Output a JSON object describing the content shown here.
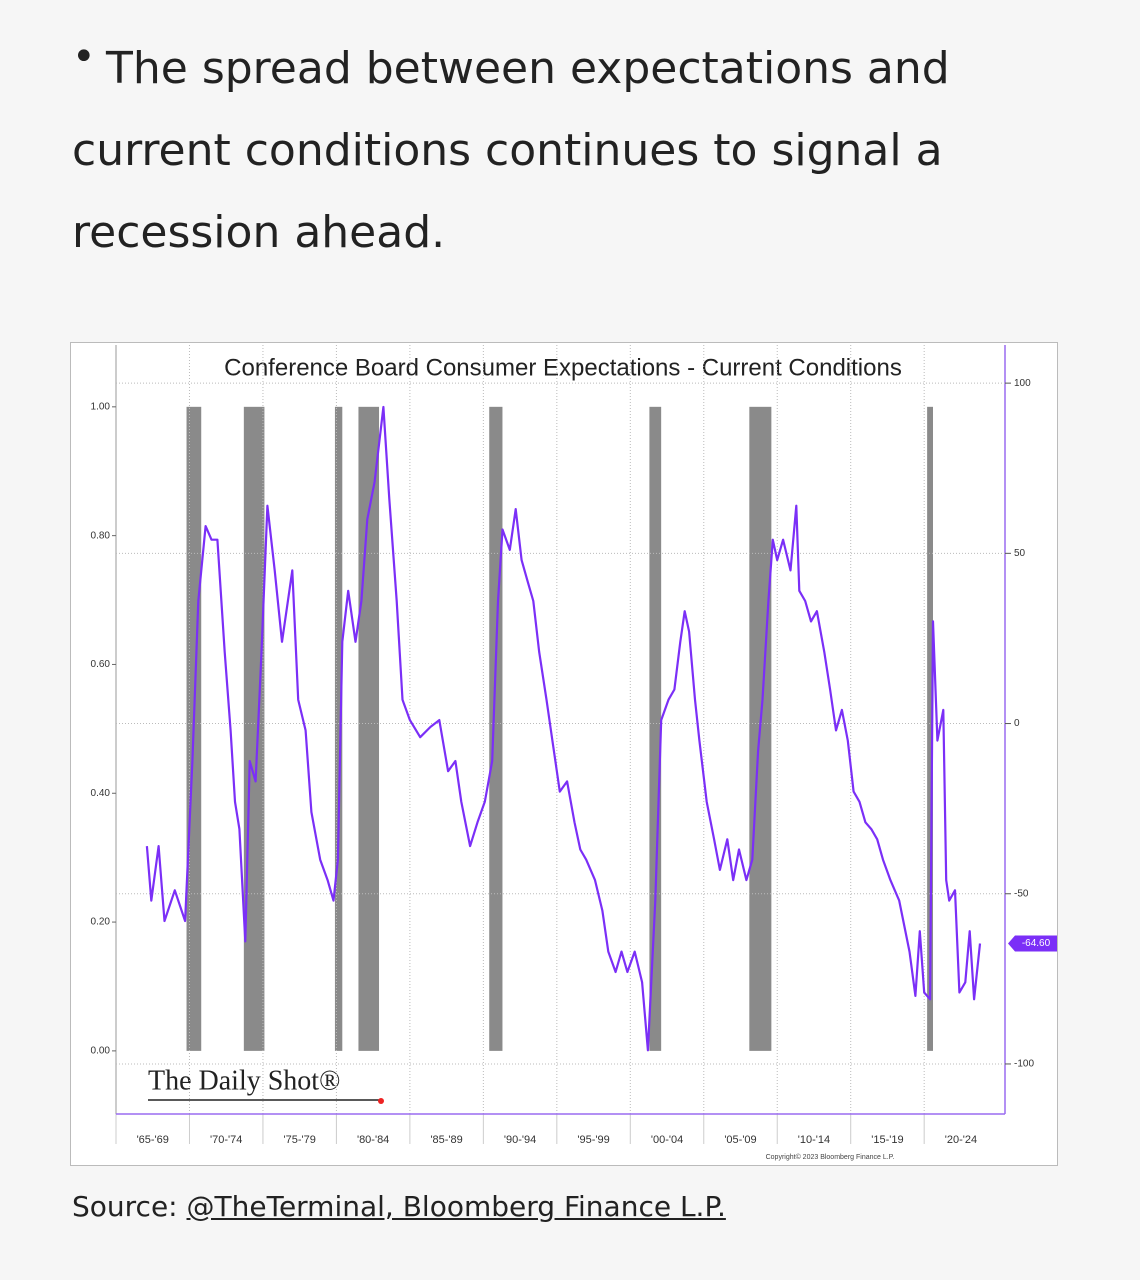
{
  "bullet": "The spread between expectations and current conditions continues to signal a recession ahead.",
  "chart_data": {
    "type": "line",
    "title": "Conference Board Consumer Expectations - Current Conditions",
    "color": "#7b2ff7",
    "axis": "y2",
    "x": [
      1967.1,
      1967.4,
      1967.9,
      1968.3,
      1969.0,
      1969.7,
      1970.2,
      1970.6,
      1971.1,
      1971.5,
      1971.9,
      1972.4,
      1972.8,
      1973.1,
      1973.4,
      1973.8,
      1974.1,
      1974.5,
      1974.9,
      1975.3,
      1975.8,
      1976.3,
      1976.7,
      1977.0,
      1977.4,
      1977.9,
      1978.3,
      1978.9,
      1979.4,
      1979.8,
      1980.1,
      1980.4,
      1980.8,
      1981.3,
      1981.7,
      1982.1,
      1982.6,
      1983.2,
      1983.6,
      1984.1,
      1984.5,
      1985.0,
      1985.7,
      1986.4,
      1987.0,
      1987.6,
      1988.1,
      1988.5,
      1989.1,
      1989.6,
      1990.1,
      1990.6,
      1991.0,
      1991.3,
      1991.8,
      1992.2,
      1992.6,
      1993.0,
      1993.4,
      1993.8,
      1994.3,
      1994.7,
      1995.2,
      1995.7,
      1996.2,
      1996.6,
      1997.0,
      1997.6,
      1998.1,
      1998.5,
      1999.0,
      1999.4,
      1999.8,
      2000.3,
      2000.8,
      2001.2,
      2001.7,
      2002.1,
      2002.6,
      2003.0,
      2003.4,
      2003.7,
      2004.0,
      2004.4,
      2004.7,
      2005.2,
      2005.7,
      2006.1,
      2006.6,
      2007.0,
      2007.4,
      2007.9,
      2008.3,
      2008.7,
      2009.0,
      2009.4,
      2009.7,
      2010.0,
      2010.4,
      2010.9,
      2011.3,
      2011.5,
      2011.9,
      2012.3,
      2012.7,
      2013.2,
      2013.6,
      2014.0,
      2014.4,
      2014.8,
      2015.2,
      2015.6,
      2016.0,
      2016.4,
      2016.8,
      2017.2,
      2017.7,
      2018.3,
      2019.0,
      2019.4,
      2019.7,
      2020.0,
      2020.4,
      2020.6,
      2020.9,
      2021.3,
      2021.5,
      2021.7,
      2022.1,
      2022.4,
      2022.8,
      2023.1,
      2023.4,
      2023.8
    ],
    "values": [
      -36,
      -52,
      -36,
      -58,
      -49,
      -58,
      -11,
      36,
      58,
      54,
      54,
      21,
      -2,
      -23,
      -31,
      -64,
      -11,
      -17,
      21,
      64,
      45,
      24,
      36,
      45,
      7,
      -2,
      -26,
      -40,
      -46,
      -52,
      -40,
      24,
      39,
      24,
      36,
      60,
      71,
      93,
      66,
      36,
      7,
      1,
      -4,
      -1,
      1,
      -14,
      -11,
      -23,
      -36,
      -29,
      -23,
      -11,
      36,
      57,
      51,
      63,
      48,
      42,
      36,
      21,
      7,
      -5,
      -20,
      -17,
      -29,
      -37,
      -40,
      -46,
      -55,
      -67,
      -73,
      -67,
      -73,
      -67,
      -76,
      -96,
      -52,
      1,
      7,
      10,
      24,
      33,
      27,
      7,
      -5,
      -23,
      -34,
      -43,
      -34,
      -46,
      -37,
      -46,
      -40,
      -8,
      7,
      36,
      54,
      48,
      54,
      45,
      64,
      39,
      36,
      30,
      33,
      21,
      10,
      -2,
      4,
      -5,
      -20,
      -23,
      -29,
      -31,
      -34,
      -40,
      -46,
      -52,
      -67,
      -80,
      -61,
      -79,
      -81,
      30,
      -5,
      4,
      -46,
      -52,
      -49,
      -79,
      -76,
      -61,
      -81,
      -64.6
    ],
    "end_label": "-64.60",
    "recessions": [
      [
        1969.8,
        1970.8
      ],
      [
        1973.7,
        1975.1
      ],
      [
        1979.9,
        1980.4
      ],
      [
        1981.5,
        1982.9
      ],
      [
        1990.4,
        1991.3
      ],
      [
        2001.3,
        2002.1
      ],
      [
        2008.1,
        2009.6
      ],
      [
        2020.2,
        2020.6
      ]
    ],
    "xlim": [
      1965,
      2025.5
    ],
    "xticks": [
      1965,
      1970,
      1975,
      1980,
      1985,
      1990,
      1995,
      2000,
      2005,
      2010,
      2015,
      2020
    ],
    "categories": [
      "'65-'69",
      "'70-'74",
      "'75-'79",
      "'80-'84",
      "'85-'89",
      "'90-'94",
      "'95-'99",
      "'00-'04",
      "'05-'09",
      "'10-'14",
      "'15-'19",
      "'20-'24"
    ],
    "ylim": [
      -0.098,
      1.096
    ],
    "yticks": [
      {
        "value": 0,
        "label": "0.00"
      },
      {
        "value": 0.2,
        "label": "0.20"
      },
      {
        "value": 0.4,
        "label": "0.40"
      },
      {
        "value": 0.6,
        "label": "0.60"
      },
      {
        "value": 0.8,
        "label": "0.80"
      },
      {
        "value": 1,
        "label": "1.00"
      }
    ],
    "y2lim": [
      -114.7,
      111.2
    ],
    "y2ticks": [
      100,
      50,
      0,
      -50,
      -100
    ],
    "grid": true,
    "logo": "The Daily Shot®",
    "copyright": "Copyright© 2023 Bloomberg Finance L.P."
  },
  "source": {
    "prefix": "Source:",
    "link": "@TheTerminal, Bloomberg Finance L.P."
  }
}
